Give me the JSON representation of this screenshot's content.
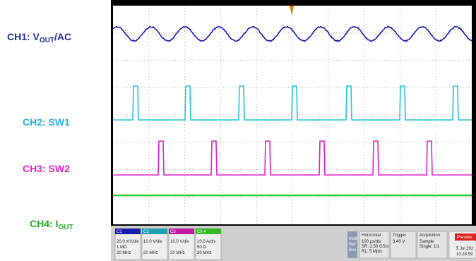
{
  "labels": [
    {
      "prefix": "CH1: V",
      "sub": "OUT",
      "suffix": "/AC"
    },
    {
      "text": "CH2: SW1"
    },
    {
      "text": "CH3: SW2"
    },
    {
      "prefix": "CH4: I",
      "sub": "OUT"
    }
  ],
  "channels": [
    {
      "name": "C1",
      "lines": [
        "20.0 mV/div",
        "1 MΩ",
        "20 MHz"
      ]
    },
    {
      "name": "C2",
      "lines": [
        "10.0 V/div",
        "",
        "20 MHz"
      ]
    },
    {
      "name": "C3",
      "lines": [
        "10.0 V/div",
        "",
        "20 MHz"
      ]
    },
    {
      "name": "Ch 4",
      "lines": [
        "10.0 A/div",
        "50 Ω",
        "20 MHz"
      ]
    }
  ],
  "math": [
    "Math",
    "Ref",
    "Bus"
  ],
  "horizontal": {
    "title": "Horizontal",
    "lines": [
      "100 µs/div",
      "SR: 2.50 GS/s",
      "RL: 5 Mpts"
    ]
  },
  "trigger": {
    "title": "Trigger",
    "lines": [
      "3.40 V"
    ]
  },
  "acquisition": {
    "title": "Acquisition",
    "lines": [
      "Sample",
      "Single: 1/1"
    ]
  },
  "preview": "Preview",
  "date": "5 Jul 202",
  "time": "10:28:59"
}
